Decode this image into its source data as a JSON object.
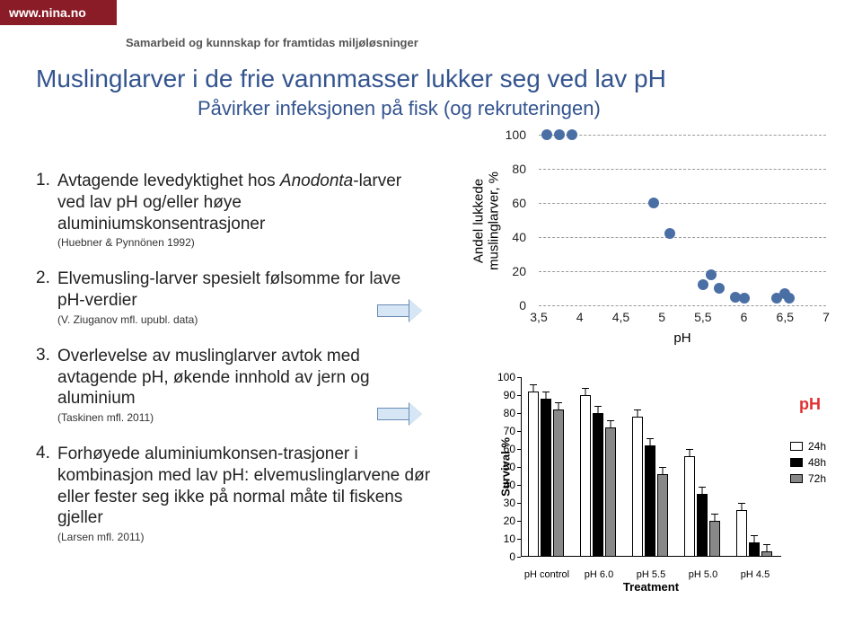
{
  "header": {
    "url": "www.nina.no",
    "tagline": "Samarbeid og kunnskap for framtidas miljøløsninger"
  },
  "title": "Muslinglarver i de frie vannmasser lukker seg ved lav pH",
  "subtitle": "Påvirker infeksjonen på fisk (og rekruteringen)",
  "list": [
    {
      "n": "1.",
      "text_pre": "Avtagende levedyktighet hos ",
      "italic": "Anodonta",
      "text_post": "-larver ved lav pH og/eller høye aluminiumskonsentrasjoner",
      "cit": "(Huebner & Pynnönen 1992)"
    },
    {
      "n": "2.",
      "text_pre": "Elvemusling-larver spesielt følsomme for lave pH-verdier",
      "italic": "",
      "text_post": "",
      "cit": "(V. Ziuganov mfl. upubl. data)"
    },
    {
      "n": "3.",
      "text_pre": "Overlevelse av muslinglarver avtok med avtagende pH, økende innhold av jern og aluminium",
      "italic": "",
      "text_post": "",
      "cit": "(Taskinen mfl. 2011)"
    },
    {
      "n": "4.",
      "text_pre": "Forhøyede aluminiumkonsen-trasjoner i kombinasjon med lav pH: elvemuslinglarvene dør eller fester seg ikke på normal måte til fiskens gjeller",
      "italic": "",
      "text_post": "",
      "cit": "(Larsen mfl. 2011)"
    }
  ],
  "scatter": {
    "y_label": "Andel lukkede muslinglarver, %",
    "x_label": "pH",
    "y_ticks": [
      0,
      20,
      40,
      60,
      80,
      100
    ],
    "x_ticks": [
      "3,5",
      "4",
      "4,5",
      "5",
      "5,5",
      "6",
      "6,5",
      "7"
    ],
    "xlim": [
      3.5,
      7.0
    ],
    "ylim": [
      0,
      100
    ],
    "point_color": "#4a6fa5",
    "grid_color": "#999999",
    "points": [
      [
        3.6,
        100
      ],
      [
        3.75,
        100
      ],
      [
        3.9,
        100
      ],
      [
        4.9,
        60
      ],
      [
        5.1,
        42
      ],
      [
        5.5,
        12
      ],
      [
        5.6,
        18
      ],
      [
        5.7,
        10
      ],
      [
        5.9,
        5
      ],
      [
        6.0,
        4
      ],
      [
        6.4,
        4
      ],
      [
        6.5,
        7
      ],
      [
        6.55,
        4
      ]
    ]
  },
  "barchart": {
    "y_label": "Survival %",
    "x_label": "Treatment",
    "annotation": "pH",
    "y_ticks": [
      0,
      10,
      20,
      30,
      40,
      50,
      60,
      70,
      80,
      90,
      100
    ],
    "x_cats": [
      "pH control",
      "pH 6.0",
      "pH 5.5",
      "pH 5.0",
      "pH 4.5"
    ],
    "legend": [
      {
        "label": "24h",
        "fill": "#ffffff"
      },
      {
        "label": "48h",
        "fill": "#000000"
      },
      {
        "label": "72h",
        "fill": "#888888"
      }
    ],
    "data": {
      "pH control": {
        "24h": 92,
        "48h": 88,
        "72h": 82
      },
      "pH 6.0": {
        "24h": 90,
        "48h": 80,
        "72h": 72
      },
      "pH 5.5": {
        "24h": 78,
        "48h": 62,
        "72h": 46
      },
      "pH 5.0": {
        "24h": 56,
        "48h": 35,
        "72h": 20
      },
      "pH 4.5": {
        "24h": 26,
        "48h": 8,
        "72h": 3
      }
    },
    "err": 4,
    "colors": {
      "24h": "#ffffff",
      "48h": "#000000",
      "72h": "#888888",
      "border": "#000000"
    }
  }
}
